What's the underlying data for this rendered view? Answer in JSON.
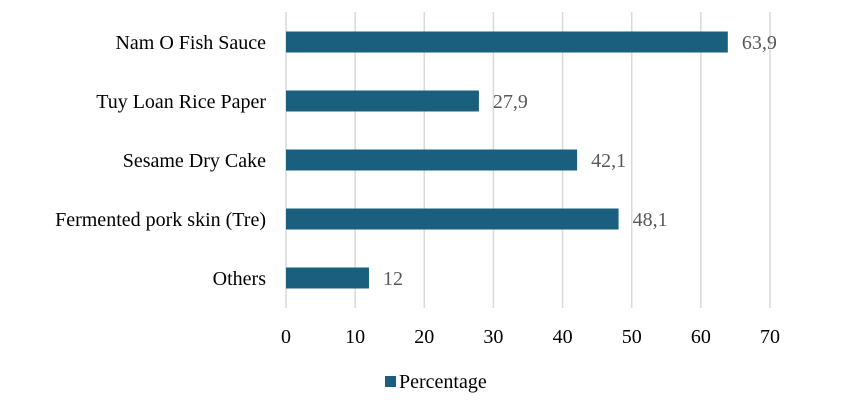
{
  "chart_data": {
    "type": "bar",
    "orientation": "horizontal",
    "categories": [
      "Nam O Fish Sauce",
      "Tuy Loan Rice Paper",
      "Sesame Dry Cake ",
      "Fermented pork skin (Tre)",
      "Others"
    ],
    "values": [
      63.9,
      27.9,
      42.1,
      48.1,
      12
    ],
    "value_labels": [
      "63,9",
      "27,9",
      "42,1",
      "48,1",
      "12"
    ],
    "series": [
      {
        "name": "Percentage",
        "values": [
          63.9,
          27.9,
          42.1,
          48.1,
          12
        ]
      }
    ],
    "xlim": [
      0,
      70
    ],
    "x_ticks": [
      0,
      10,
      20,
      30,
      40,
      50,
      60,
      70
    ],
    "grid": "vertical",
    "legend": "bottom",
    "title": "",
    "xlabel": "",
    "ylabel": ""
  },
  "colors": {
    "bar": "#1b5f7f",
    "grid": "#d9d9d9",
    "data_label": "#595959"
  }
}
